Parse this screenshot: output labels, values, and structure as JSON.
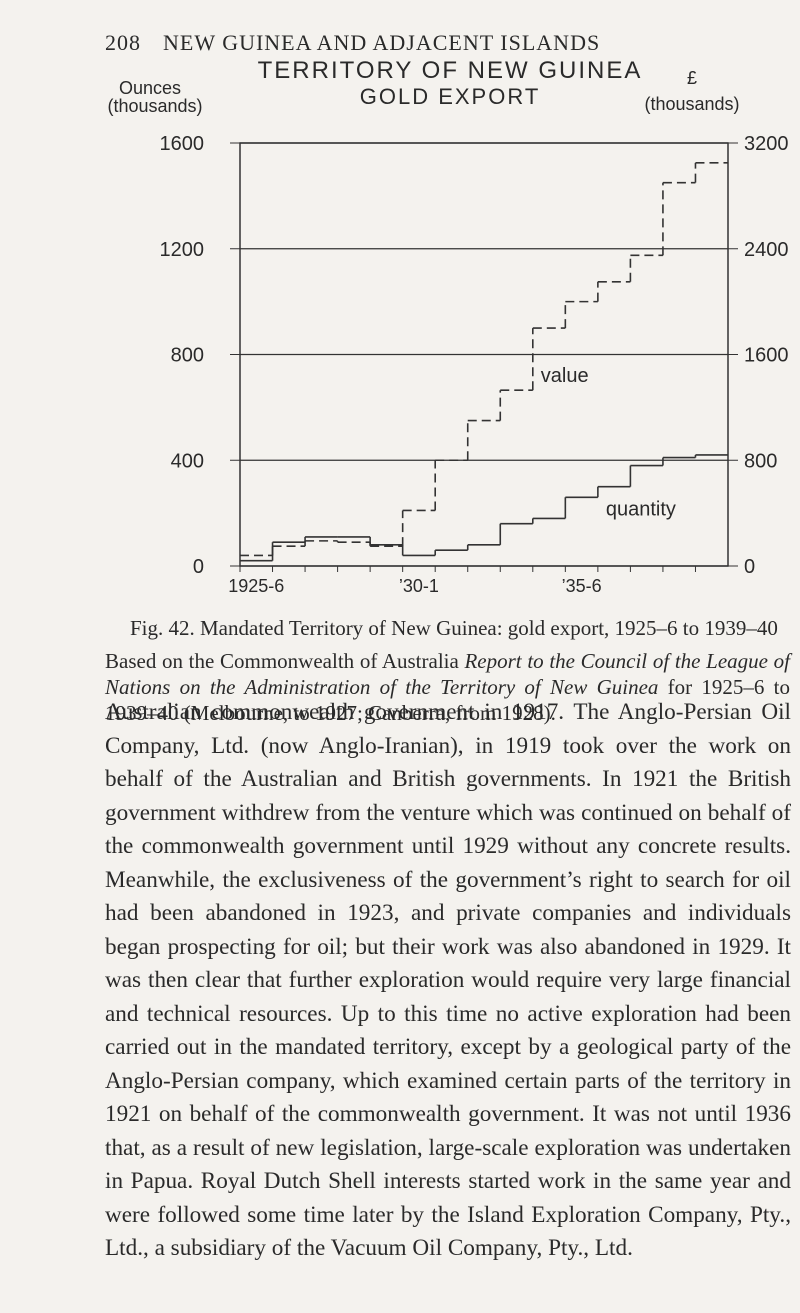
{
  "header": {
    "page_number": "208",
    "running_head": "NEW GUINEA AND ADJACENT ISLANDS"
  },
  "chart_data": {
    "type": "step",
    "title": "TERRITORY OF NEW GUINEA",
    "subtitle": "GOLD EXPORT",
    "y_label": [
      "Ounces",
      "(thousands)"
    ],
    "y2_label": [
      "£",
      "(thousands)"
    ],
    "categories": [
      "1925-6",
      null,
      null,
      null,
      null,
      "’30-1",
      null,
      null,
      null,
      null,
      "’35-6",
      null,
      null,
      null,
      null
    ],
    "ylim": [
      0,
      1600
    ],
    "yticks": [
      0,
      400,
      800,
      1200,
      1600
    ],
    "y2lim": [
      0,
      3200
    ],
    "y2ticks": [
      0,
      800,
      1600,
      2400,
      3200
    ],
    "grid": true,
    "series": [
      {
        "name": "quantity",
        "color": "#333333",
        "values": [
          20,
          90,
          110,
          110,
          80,
          40,
          60,
          80,
          160,
          180,
          260,
          300,
          380,
          410,
          420
        ]
      },
      {
        "name": "value",
        "color": "#333333",
        "axis": "y2",
        "values": [
          80,
          150,
          190,
          180,
          150,
          420,
          800,
          1100,
          1330,
          1800,
          2000,
          2150,
          2350,
          2900,
          3050
        ]
      }
    ]
  },
  "caption": "Fig. 42. Mandated Territory of New Guinea: gold export, 1925–6 to 1939–40",
  "source": [
    "Based on the Commonwealth of Australia ",
    "Report to the Council of the League of Nations on the Administration of the Territory of New Guinea",
    " for 1925–6 to 1939–40 (Melbourne, to 1927; Canberra, from 1928)."
  ],
  "body": "Australian commonwealth government in 1917. The Anglo-Persian Oil Company, Ltd. (now Anglo-Iranian), in 1919 took over the work on behalf of the Australian and British governments. In 1921 the British government withdrew from the venture which was continued on behalf of the commonwealth government until 1929 without any concrete results. Meanwhile, the exclusiveness of the government’s right to search for oil had been abandoned in 1923, and private companies and individuals began prospecting for oil; but their work was also abandoned in 1929. It was then clear that further exploration would require very large financial and technical resources. Up to this time no active exploration had been carried out in the mandated territory, except by a geological party of the Anglo-Persian company, which examined certain parts of the territory in 1921 on behalf of the commonwealth government. It was not until 1936 that, as a result of new legislation, large-scale exploration was undertaken in Papua. Royal Dutch Shell interests started work in the same year and were followed some time later by the Island Exploration Company, Pty., Ltd., a subsidiary of the Vacuum Oil Company, Pty., Ltd."
}
